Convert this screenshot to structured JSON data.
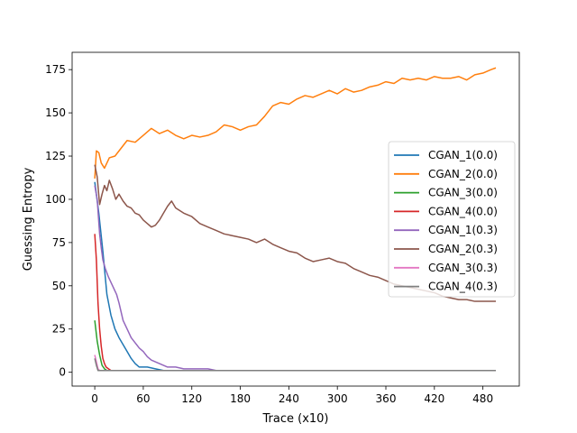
{
  "chart_data": {
    "type": "line",
    "xlabel": "Trace (x10)",
    "ylabel": "Guessing Entropy",
    "xlim": [
      -28,
      525
    ],
    "ylim": [
      -8,
      185
    ],
    "xticks": [
      0,
      60,
      120,
      180,
      240,
      300,
      360,
      420,
      480
    ],
    "yticks": [
      0,
      25,
      50,
      75,
      100,
      125,
      150,
      175
    ],
    "grid": false,
    "legend_position": "center-right",
    "series": [
      {
        "name": "CGAN_1(0.0)",
        "color": "#1f77b4",
        "points": [
          [
            0,
            110
          ],
          [
            5,
            92
          ],
          [
            10,
            70
          ],
          [
            15,
            45
          ],
          [
            20,
            33
          ],
          [
            25,
            25
          ],
          [
            30,
            20
          ],
          [
            35,
            16
          ],
          [
            40,
            12
          ],
          [
            45,
            8
          ],
          [
            50,
            5
          ],
          [
            55,
            3
          ],
          [
            65,
            3
          ],
          [
            75,
            2
          ],
          [
            85,
            1
          ],
          [
            100,
            1
          ],
          [
            496,
            1
          ]
        ]
      },
      {
        "name": "CGAN_2(0.0)",
        "color": "#ff7f0e",
        "points": [
          [
            0,
            112
          ],
          [
            2,
            128
          ],
          [
            5,
            127
          ],
          [
            8,
            121
          ],
          [
            12,
            118
          ],
          [
            18,
            124
          ],
          [
            25,
            125
          ],
          [
            30,
            128
          ],
          [
            40,
            134
          ],
          [
            50,
            133
          ],
          [
            60,
            137
          ],
          [
            70,
            141
          ],
          [
            80,
            138
          ],
          [
            90,
            140
          ],
          [
            100,
            137
          ],
          [
            110,
            135
          ],
          [
            120,
            137
          ],
          [
            130,
            136
          ],
          [
            140,
            137
          ],
          [
            150,
            139
          ],
          [
            160,
            143
          ],
          [
            170,
            142
          ],
          [
            180,
            140
          ],
          [
            190,
            142
          ],
          [
            200,
            143
          ],
          [
            210,
            148
          ],
          [
            220,
            154
          ],
          [
            230,
            156
          ],
          [
            240,
            155
          ],
          [
            250,
            158
          ],
          [
            260,
            160
          ],
          [
            270,
            159
          ],
          [
            280,
            161
          ],
          [
            290,
            163
          ],
          [
            300,
            161
          ],
          [
            310,
            164
          ],
          [
            320,
            162
          ],
          [
            330,
            163
          ],
          [
            340,
            165
          ],
          [
            350,
            166
          ],
          [
            360,
            168
          ],
          [
            370,
            167
          ],
          [
            380,
            170
          ],
          [
            390,
            169
          ],
          [
            400,
            170
          ],
          [
            410,
            169
          ],
          [
            420,
            171
          ],
          [
            430,
            170
          ],
          [
            440,
            170
          ],
          [
            450,
            171
          ],
          [
            460,
            169
          ],
          [
            470,
            172
          ],
          [
            480,
            173
          ],
          [
            490,
            175
          ],
          [
            496,
            176
          ]
        ]
      },
      {
        "name": "CGAN_3(0.0)",
        "color": "#2ca02c",
        "points": [
          [
            0,
            30
          ],
          [
            3,
            18
          ],
          [
            6,
            10
          ],
          [
            9,
            4
          ],
          [
            12,
            2
          ],
          [
            15,
            1
          ],
          [
            496,
            1
          ]
        ]
      },
      {
        "name": "CGAN_4(0.0)",
        "color": "#d62728",
        "points": [
          [
            0,
            80
          ],
          [
            2,
            65
          ],
          [
            4,
            40
          ],
          [
            6,
            25
          ],
          [
            8,
            15
          ],
          [
            10,
            8
          ],
          [
            12,
            5
          ],
          [
            14,
            3
          ],
          [
            17,
            2
          ],
          [
            20,
            1
          ],
          [
            496,
            1
          ]
        ]
      },
      {
        "name": "CGAN_1(0.3)",
        "color": "#9467bd",
        "points": [
          [
            0,
            108
          ],
          [
            3,
            100
          ],
          [
            6,
            80
          ],
          [
            8,
            72
          ],
          [
            10,
            65
          ],
          [
            13,
            60
          ],
          [
            17,
            55
          ],
          [
            22,
            50
          ],
          [
            27,
            45
          ],
          [
            30,
            40
          ],
          [
            35,
            30
          ],
          [
            40,
            25
          ],
          [
            45,
            20
          ],
          [
            50,
            17
          ],
          [
            55,
            14
          ],
          [
            60,
            12
          ],
          [
            65,
            9
          ],
          [
            70,
            7
          ],
          [
            80,
            5
          ],
          [
            90,
            3
          ],
          [
            100,
            3
          ],
          [
            110,
            2
          ],
          [
            120,
            2
          ],
          [
            130,
            2
          ],
          [
            140,
            2
          ],
          [
            150,
            1
          ],
          [
            496,
            1
          ]
        ]
      },
      {
        "name": "CGAN_2(0.3)",
        "color": "#8c564b",
        "points": [
          [
            0,
            120
          ],
          [
            3,
            113
          ],
          [
            6,
            97
          ],
          [
            9,
            103
          ],
          [
            12,
            108
          ],
          [
            15,
            105
          ],
          [
            18,
            111
          ],
          [
            22,
            106
          ],
          [
            26,
            100
          ],
          [
            30,
            103
          ],
          [
            35,
            99
          ],
          [
            40,
            96
          ],
          [
            45,
            95
          ],
          [
            50,
            92
          ],
          [
            55,
            91
          ],
          [
            60,
            88
          ],
          [
            65,
            86
          ],
          [
            70,
            84
          ],
          [
            75,
            85
          ],
          [
            80,
            88
          ],
          [
            85,
            92
          ],
          [
            90,
            96
          ],
          [
            95,
            99
          ],
          [
            100,
            95
          ],
          [
            110,
            92
          ],
          [
            120,
            90
          ],
          [
            130,
            86
          ],
          [
            140,
            84
          ],
          [
            150,
            82
          ],
          [
            160,
            80
          ],
          [
            170,
            79
          ],
          [
            180,
            78
          ],
          [
            190,
            77
          ],
          [
            200,
            75
          ],
          [
            210,
            77
          ],
          [
            220,
            74
          ],
          [
            230,
            72
          ],
          [
            240,
            70
          ],
          [
            250,
            69
          ],
          [
            260,
            66
          ],
          [
            270,
            64
          ],
          [
            280,
            65
          ],
          [
            290,
            66
          ],
          [
            300,
            64
          ],
          [
            310,
            63
          ],
          [
            320,
            60
          ],
          [
            330,
            58
          ],
          [
            340,
            56
          ],
          [
            350,
            55
          ],
          [
            360,
            53
          ],
          [
            370,
            51
          ],
          [
            380,
            50
          ],
          [
            390,
            49
          ],
          [
            400,
            48
          ],
          [
            410,
            47
          ],
          [
            420,
            46
          ],
          [
            430,
            44
          ],
          [
            440,
            43
          ],
          [
            450,
            42
          ],
          [
            460,
            42
          ],
          [
            470,
            41
          ],
          [
            480,
            41
          ],
          [
            490,
            41
          ],
          [
            496,
            41
          ]
        ]
      },
      {
        "name": "CGAN_3(0.3)",
        "color": "#e377c2",
        "points": [
          [
            0,
            10
          ],
          [
            2,
            6
          ],
          [
            4,
            2
          ],
          [
            6,
            1
          ],
          [
            496,
            1
          ]
        ]
      },
      {
        "name": "CGAN_4(0.3)",
        "color": "#7f7f7f",
        "points": [
          [
            0,
            8
          ],
          [
            2,
            4
          ],
          [
            4,
            1
          ],
          [
            496,
            1
          ]
        ]
      }
    ]
  }
}
